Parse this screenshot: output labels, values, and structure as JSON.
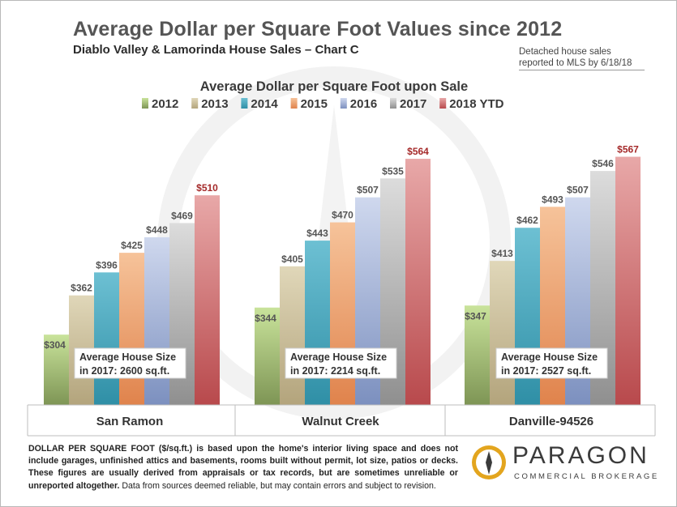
{
  "header": {
    "title": "Average Dollar per Square Foot Values since 2012",
    "subtitle": "Diablo Valley & Lamorinda House Sales – Chart C",
    "note_line1": "Detached house sales",
    "note_line2": "reported to MLS by 6/18/18"
  },
  "chart_data": {
    "type": "bar",
    "title": "Average Dollar per Square Foot upon Sale",
    "categories": [
      "San Ramon",
      "Walnut Creek",
      "Danville-94526"
    ],
    "series": [
      {
        "name": "2012",
        "values": [
          304,
          344,
          347
        ]
      },
      {
        "name": "2013",
        "values": [
          362,
          405,
          413
        ]
      },
      {
        "name": "2014",
        "values": [
          396,
          443,
          462
        ]
      },
      {
        "name": "2015",
        "values": [
          425,
          470,
          493
        ]
      },
      {
        "name": "2016",
        "values": [
          448,
          507,
          507
        ]
      },
      {
        "name": "2017",
        "values": [
          469,
          535,
          546
        ]
      },
      {
        "name": "2018 YTD",
        "values": [
          510,
          564,
          567
        ]
      }
    ],
    "value_prefix": "$",
    "ylim": [
      200,
      600
    ],
    "grid": false,
    "legend_position": "top",
    "colors": {
      "2012": [
        "#7e9555",
        "#c9e39b"
      ],
      "2013": [
        "#b3a47c",
        "#e0d7b9"
      ],
      "2014": [
        "#2f8fa6",
        "#6dc0d3"
      ],
      "2015": [
        "#e0834c",
        "#f6c39a"
      ],
      "2016": [
        "#7c90bf",
        "#cfd8ee"
      ],
      "2017": [
        "#8f8f8f",
        "#dcdcdc"
      ],
      "2018 YTD": [
        "#b8494c",
        "#e8a8a8"
      ]
    },
    "label_color_default": "#555555",
    "label_color_last": "#a52a2a",
    "annotations": [
      {
        "line1": "Average House Size",
        "line2": "in 2017: 2600 sq.ft."
      },
      {
        "line1": "Average House Size",
        "line2": "in 2017: 2214 sq.ft."
      },
      {
        "line1": "Average House Size",
        "line2": "in 2017: 2527 sq.ft."
      }
    ]
  },
  "footer": {
    "bold_text": "DOLLAR PER SQUARE FOOT ($/sq.ft.) is based upon the home's interior living space and does not include garages, unfinished attics and basements, rooms built without permit, lot size, patios or decks. These figures are usually derived from appraisals or tax records, but are sometimes unreliable or unreported altogether.",
    "normal_text": " Data from sources deemed reliable, but may contain errors and subject to revision."
  },
  "logo": {
    "name": "PARAGON",
    "tagline": "COMMERCIAL BROKERAGE",
    "colors": {
      "gold": "#e3a51e",
      "gray": "#3b3b3b"
    }
  }
}
